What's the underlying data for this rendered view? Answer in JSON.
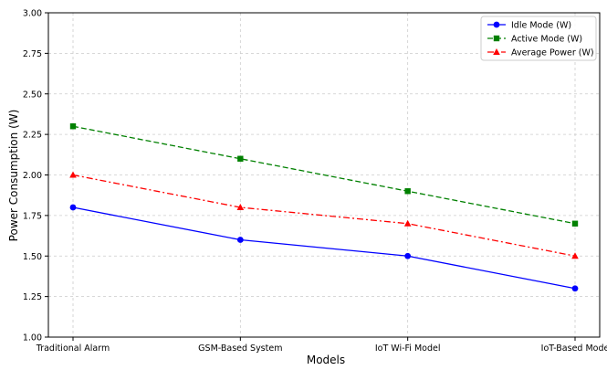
{
  "chart_data": {
    "type": "line",
    "title": "",
    "xlabel": "Models",
    "ylabel": "Power Consumption (W)",
    "categories": [
      "Traditional Alarm",
      "GSM-Based System",
      "IoT Wi-Fi Model",
      "IoT-Based Mode"
    ],
    "ylim": [
      1.0,
      3.0
    ],
    "yticks": [
      "1.00",
      "1.25",
      "1.50",
      "1.75",
      "2.00",
      "2.25",
      "2.50",
      "2.75",
      "3.00"
    ],
    "grid": true,
    "legend_position": "top-right",
    "series": [
      {
        "name": "Idle Mode (W)",
        "values": [
          1.8,
          1.6,
          1.5,
          1.3
        ],
        "color": "#0000ff",
        "marker": "circle",
        "dash": "solid"
      },
      {
        "name": "Active Mode (W)",
        "values": [
          2.3,
          2.1,
          1.9,
          1.7
        ],
        "color": "#008000",
        "marker": "square",
        "dash": "dashed"
      },
      {
        "name": "Average Power (W)",
        "values": [
          2.0,
          1.8,
          1.7,
          1.5
        ],
        "color": "#ff0000",
        "marker": "triangle",
        "dash": "dashdot"
      }
    ]
  }
}
